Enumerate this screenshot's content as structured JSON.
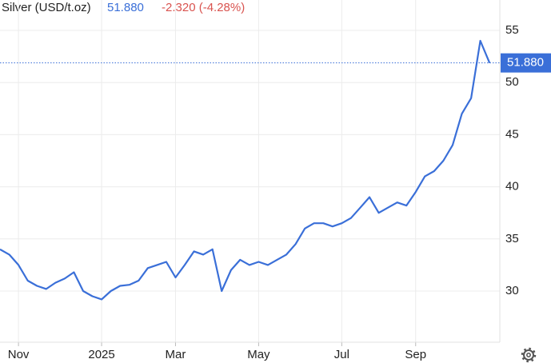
{
  "chart_data": {
    "type": "line",
    "title": "Silver (USD/t.oz)",
    "price": "51.880",
    "change": "-2.320 (-4.28%)",
    "categories": [
      null,
      null,
      "Nov",
      null,
      null,
      null,
      null,
      null,
      null,
      null,
      null,
      "2025",
      null,
      null,
      null,
      null,
      null,
      null,
      null,
      "Mar",
      null,
      null,
      null,
      null,
      null,
      null,
      null,
      null,
      "May",
      null,
      null,
      null,
      null,
      null,
      null,
      null,
      null,
      "Jul",
      null,
      null,
      null,
      null,
      null,
      null,
      null,
      "Sep",
      null,
      null,
      null,
      null,
      null,
      null,
      null,
      null
    ],
    "series": [
      {
        "name": "Silver",
        "color": "#3a6fd8",
        "values": [
          34.0,
          33.5,
          32.5,
          31.0,
          30.5,
          30.2,
          30.8,
          31.2,
          31.8,
          30.0,
          29.5,
          29.2,
          30.0,
          30.5,
          30.6,
          31.0,
          32.2,
          32.5,
          32.8,
          31.3,
          32.5,
          33.8,
          33.5,
          34.0,
          30.0,
          32.0,
          33.0,
          32.5,
          32.8,
          32.5,
          33.0,
          33.5,
          34.5,
          36.0,
          36.5,
          36.5,
          36.2,
          36.5,
          37.0,
          38.0,
          39.0,
          37.5,
          38.0,
          38.5,
          38.2,
          39.5,
          41.0,
          41.5,
          42.5,
          44.0,
          47.0,
          48.5,
          54.0,
          51.88
        ]
      }
    ],
    "ylim": [
      25,
      58
    ],
    "yticks": [
      30,
      35,
      40,
      45,
      50,
      55
    ],
    "grid": true
  }
}
